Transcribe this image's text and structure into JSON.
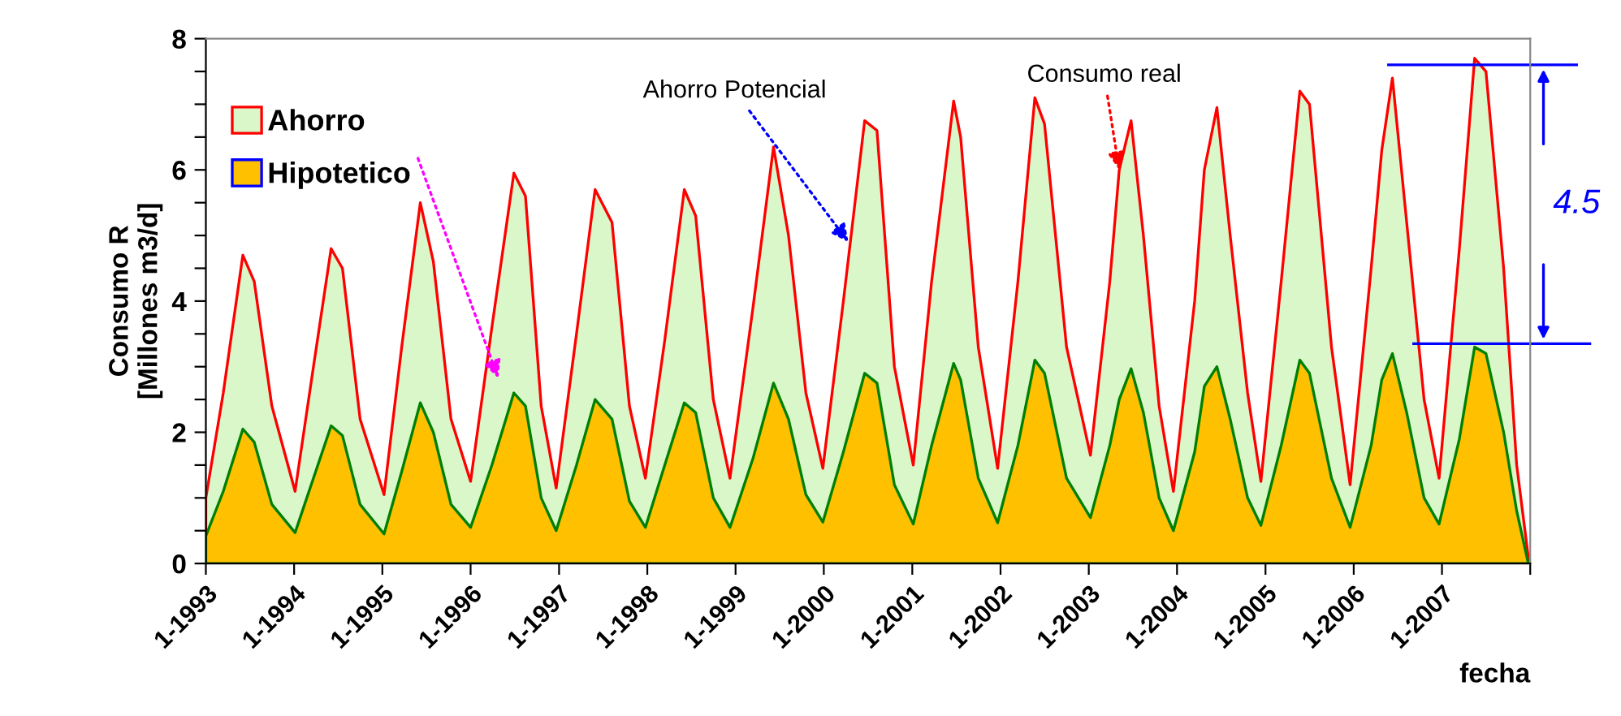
{
  "chart_data": {
    "type": "area",
    "ylabel": "Consumo R\n[Millones m3/d]",
    "xlabel": "fecha",
    "x": [
      "1993-01-01",
      "1993-03-14",
      "1993-06-03",
      "1993-07-20",
      "1993-10-01",
      "1994-01-05",
      "1994-03-22",
      "1994-06-03",
      "1994-07-20",
      "1994-10-01",
      "1995-01-08",
      "1995-03-22",
      "1995-06-07",
      "1995-07-31",
      "1995-10-12",
      "1996-01-01",
      "1996-03-29",
      "1996-06-28",
      "1996-08-15",
      "1996-10-19",
      "1996-12-20",
      "1997-03-14",
      "1997-05-30",
      "1997-08-08",
      "1997-10-19",
      "1997-12-24",
      "1998-03-14",
      "1998-06-03",
      "1998-07-20",
      "1998-10-01",
      "1998-12-09",
      "1999-03-14",
      "1999-06-07",
      "1999-08-08",
      "1999-10-19",
      "1999-12-28",
      "2000-03-22",
      "2000-06-18",
      "2000-08-08",
      "2000-10-19",
      "2001-01-05",
      "2001-03-22",
      "2001-06-21",
      "2001-07-20",
      "2001-10-01",
      "2001-12-20",
      "2002-03-14",
      "2002-05-23",
      "2002-07-02",
      "2002-10-01",
      "2003-01-08",
      "2003-03-29",
      "2003-05-07",
      "2003-06-25",
      "2003-08-15",
      "2003-10-19",
      "2003-12-17",
      "2004-03-14",
      "2004-04-23",
      "2004-06-14",
      "2004-08-08",
      "2004-10-19",
      "2004-12-13",
      "2005-03-07",
      "2005-05-23",
      "2005-07-02",
      "2005-10-01",
      "2005-12-17",
      "2006-03-14",
      "2006-04-27",
      "2006-06-10",
      "2006-08-08",
      "2006-10-19",
      "2006-12-20",
      "2007-03-14",
      "2007-05-16",
      "2007-07-02",
      "2007-09-13",
      "2007-11-06",
      "2007-12-24"
    ],
    "series": [
      {
        "name": "Ahorro",
        "color": "#d9f7c9",
        "values": [
          1.0,
          2.6,
          4.7,
          4.3,
          2.4,
          1.1,
          3.0,
          4.8,
          4.5,
          2.2,
          1.05,
          3.3,
          5.5,
          4.6,
          2.2,
          1.25,
          3.6,
          5.95,
          5.6,
          2.4,
          1.15,
          3.5,
          5.7,
          5.2,
          2.4,
          1.3,
          3.4,
          5.7,
          5.3,
          2.5,
          1.3,
          3.9,
          6.35,
          5.0,
          2.6,
          1.45,
          4.0,
          6.75,
          6.6,
          3.0,
          1.5,
          4.3,
          7.05,
          6.5,
          3.3,
          1.45,
          4.3,
          7.1,
          6.7,
          3.3,
          1.65,
          4.3,
          6.0,
          6.75,
          5.0,
          2.4,
          1.1,
          4.0,
          6.0,
          6.95,
          5.0,
          2.6,
          1.25,
          4.3,
          7.2,
          7.0,
          3.3,
          1.2,
          4.5,
          6.3,
          7.4,
          5.2,
          2.5,
          1.3,
          4.8,
          7.7,
          7.5,
          4.5,
          1.5,
          0.1
        ]
      },
      {
        "name": "Hipotetico",
        "color": "#ffc000",
        "values": [
          0.42,
          1.1,
          2.05,
          1.85,
          0.9,
          0.47,
          1.3,
          2.1,
          1.95,
          0.9,
          0.45,
          1.4,
          2.45,
          2.0,
          0.9,
          0.55,
          1.5,
          2.6,
          2.4,
          1.0,
          0.5,
          1.5,
          2.5,
          2.2,
          0.95,
          0.55,
          1.5,
          2.45,
          2.3,
          1.0,
          0.55,
          1.6,
          2.75,
          2.2,
          1.05,
          0.63,
          1.7,
          2.9,
          2.75,
          1.2,
          0.6,
          1.8,
          3.05,
          2.8,
          1.3,
          0.62,
          1.8,
          3.1,
          2.9,
          1.3,
          0.7,
          1.8,
          2.5,
          2.97,
          2.3,
          1.0,
          0.5,
          1.7,
          2.7,
          3.0,
          2.2,
          1.0,
          0.58,
          1.8,
          3.1,
          2.9,
          1.3,
          0.55,
          1.8,
          2.8,
          3.2,
          2.3,
          1.0,
          0.6,
          1.9,
          3.3,
          3.2,
          2.0,
          0.8,
          0.0
        ]
      }
    ],
    "xlim": [
      "1993-01-01",
      "2008-01-01"
    ],
    "xticks": [
      {
        "value": "1993-01-01",
        "label": "1-1993"
      },
      {
        "value": "1994-01-01",
        "label": "1-1994"
      },
      {
        "value": "1995-01-01",
        "label": "1-1995"
      },
      {
        "value": "1996-01-01",
        "label": "1-1996"
      },
      {
        "value": "1997-01-01",
        "label": "1-1997"
      },
      {
        "value": "1998-01-01",
        "label": "1-1998"
      },
      {
        "value": "1999-01-01",
        "label": "1-1999"
      },
      {
        "value": "2000-01-01",
        "label": "1-2000"
      },
      {
        "value": "2001-01-01",
        "label": "1-2001"
      },
      {
        "value": "2002-01-01",
        "label": "1-2002"
      },
      {
        "value": "2003-01-01",
        "label": "1-2003"
      },
      {
        "value": "2004-01-01",
        "label": "1-2004"
      },
      {
        "value": "2005-01-01",
        "label": "1-2005"
      },
      {
        "value": "2006-01-01",
        "label": "1-2006"
      },
      {
        "value": "2007-01-01",
        "label": "1-2007"
      },
      {
        "value": "2008-01-01",
        "label": null
      }
    ],
    "ylim": [
      0,
      8
    ],
    "yticks": [
      0,
      {
        "value": 0.5,
        "label": null
      },
      {
        "value": 1,
        "label": null
      },
      {
        "value": 1.5,
        "label": null
      },
      2,
      {
        "value": 2.5,
        "label": null
      },
      {
        "value": 3,
        "label": null
      },
      {
        "value": 3.5,
        "label": null
      },
      4,
      {
        "value": 4.5,
        "label": null
      },
      {
        "value": 5,
        "label": null
      },
      {
        "value": 5.5,
        "label": null
      },
      6,
      {
        "value": 6.5,
        "label": null
      },
      {
        "value": 7,
        "label": null
      },
      {
        "value": 7.5,
        "label": null
      },
      8
    ],
    "annotations": [
      {
        "text": "Ahorro Potencial",
        "x": "2000-04-12",
        "y": 4.9
      },
      {
        "text": "Consumo real",
        "x": "2003-05-07",
        "y": 6.0
      },
      "4.5"
    ],
    "ref_lines": [
      {
        "axis": "y",
        "value": 7.6,
        "color": "#0000ff"
      },
      {
        "axis": "y",
        "value": 3.35,
        "color": "#0000ff"
      }
    ],
    "legend": "top left",
    "grid": false
  }
}
